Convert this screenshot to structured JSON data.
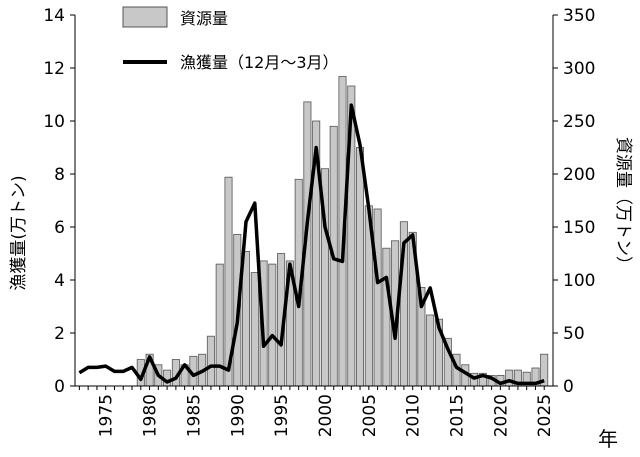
{
  "chart_data": {
    "type": "bar+line",
    "years": [
      1972,
      1973,
      1974,
      1975,
      1976,
      1977,
      1978,
      1979,
      1980,
      1981,
      1982,
      1983,
      1984,
      1985,
      1986,
      1987,
      1988,
      1989,
      1990,
      1991,
      1992,
      1993,
      1994,
      1995,
      1996,
      1997,
      1998,
      1999,
      2000,
      2001,
      2002,
      2003,
      2004,
      2005,
      2006,
      2007,
      2008,
      2009,
      2010,
      2011,
      2012,
      2013,
      2014,
      2015,
      2016,
      2017,
      2018,
      2019,
      2020,
      2021,
      2022,
      2023,
      2024,
      2025
    ],
    "x_ticks": [
      "1975",
      "1980",
      "1985",
      "1990",
      "1995",
      "2000",
      "2005",
      "2010",
      "2015",
      "2020",
      "2025"
    ],
    "x_tick_years": [
      1975,
      1980,
      1985,
      1990,
      1995,
      2000,
      2005,
      2010,
      2015,
      2020,
      2025
    ],
    "xlabel": "年",
    "left_axis": {
      "label": "漁獲量(万トン)",
      "min": 0,
      "max": 14,
      "ticks": [
        "0",
        "2",
        "4",
        "6",
        "8",
        "10",
        "12",
        "14"
      ]
    },
    "right_axis": {
      "label": "資源量（万トン）",
      "min": 0,
      "max": 350,
      "ticks": [
        "0",
        "50",
        "100",
        "150",
        "200",
        "250",
        "300",
        "350"
      ]
    },
    "series": [
      {
        "name": "資源量",
        "kind": "bar",
        "axis": "right",
        "start_year": 1979,
        "values": [
          25,
          30,
          20,
          15,
          25,
          20,
          28,
          30,
          47,
          115,
          197,
          143,
          127,
          107,
          118,
          115,
          125,
          118,
          195,
          268,
          250,
          205,
          245,
          292,
          283,
          225,
          170,
          167,
          130,
          137,
          155,
          145,
          93,
          67,
          63,
          45,
          30,
          20,
          12,
          12,
          10,
          10,
          15,
          15,
          13,
          17,
          30
        ]
      },
      {
        "name": "漁獲量（12月～3月）",
        "kind": "line",
        "axis": "left",
        "values": [
          0.5,
          0.7,
          0.7,
          0.75,
          0.55,
          0.55,
          0.7,
          0.25,
          1.1,
          0.4,
          0.15,
          0.3,
          0.8,
          0.4,
          0.55,
          0.75,
          0.75,
          0.6,
          2.4,
          6.2,
          6.9,
          1.5,
          1.9,
          1.55,
          4.6,
          3.0,
          6.2,
          9.0,
          6.0,
          4.8,
          4.7,
          10.6,
          9.1,
          6.7,
          3.9,
          4.1,
          1.8,
          5.4,
          5.7,
          3.0,
          3.7,
          2.2,
          1.4,
          0.7,
          0.5,
          0.3,
          0.4,
          0.3,
          0.1,
          0.2,
          0.1,
          0.1,
          0.1,
          0.2
        ]
      }
    ],
    "legend_position": "top-left",
    "colors": {
      "bar_fill": "#c8c8c8",
      "bar_stroke": "#555555",
      "line": "#000000"
    }
  }
}
